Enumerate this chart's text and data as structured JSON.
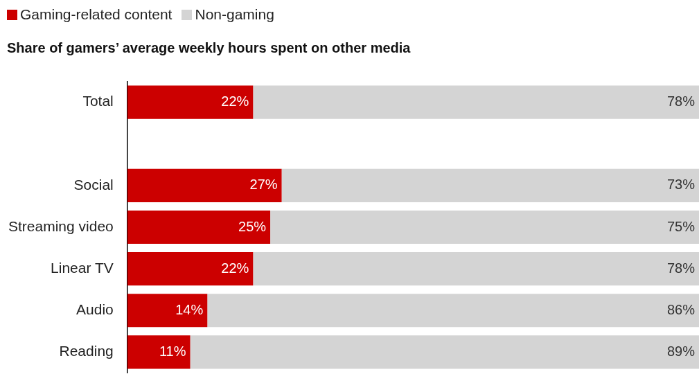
{
  "chart_data": {
    "type": "bar",
    "orientation": "horizontal",
    "stacked": true,
    "title": "Share of gamers’ average weekly hours spent on other media",
    "categories": [
      "Total",
      null,
      "Social",
      "Streaming video",
      "Linear TV",
      "Audio",
      "Reading"
    ],
    "series": [
      {
        "name": "Gaming-related content",
        "color": "#cc0000",
        "values": [
          22,
          null,
          27,
          25,
          22,
          14,
          11
        ],
        "value_labels": [
          "22%",
          null,
          "27%",
          "25%",
          "22%",
          "14%",
          "11%"
        ]
      },
      {
        "name": "Non-gaming",
        "color": "#d4d4d4",
        "values": [
          78,
          null,
          73,
          75,
          78,
          86,
          89
        ],
        "value_labels": [
          "78%",
          null,
          "73%",
          "75%",
          "78%",
          "86%",
          "89%"
        ]
      }
    ],
    "xlim": [
      0,
      100
    ],
    "tick_labels": "y",
    "grid": false,
    "legend": "top left"
  }
}
